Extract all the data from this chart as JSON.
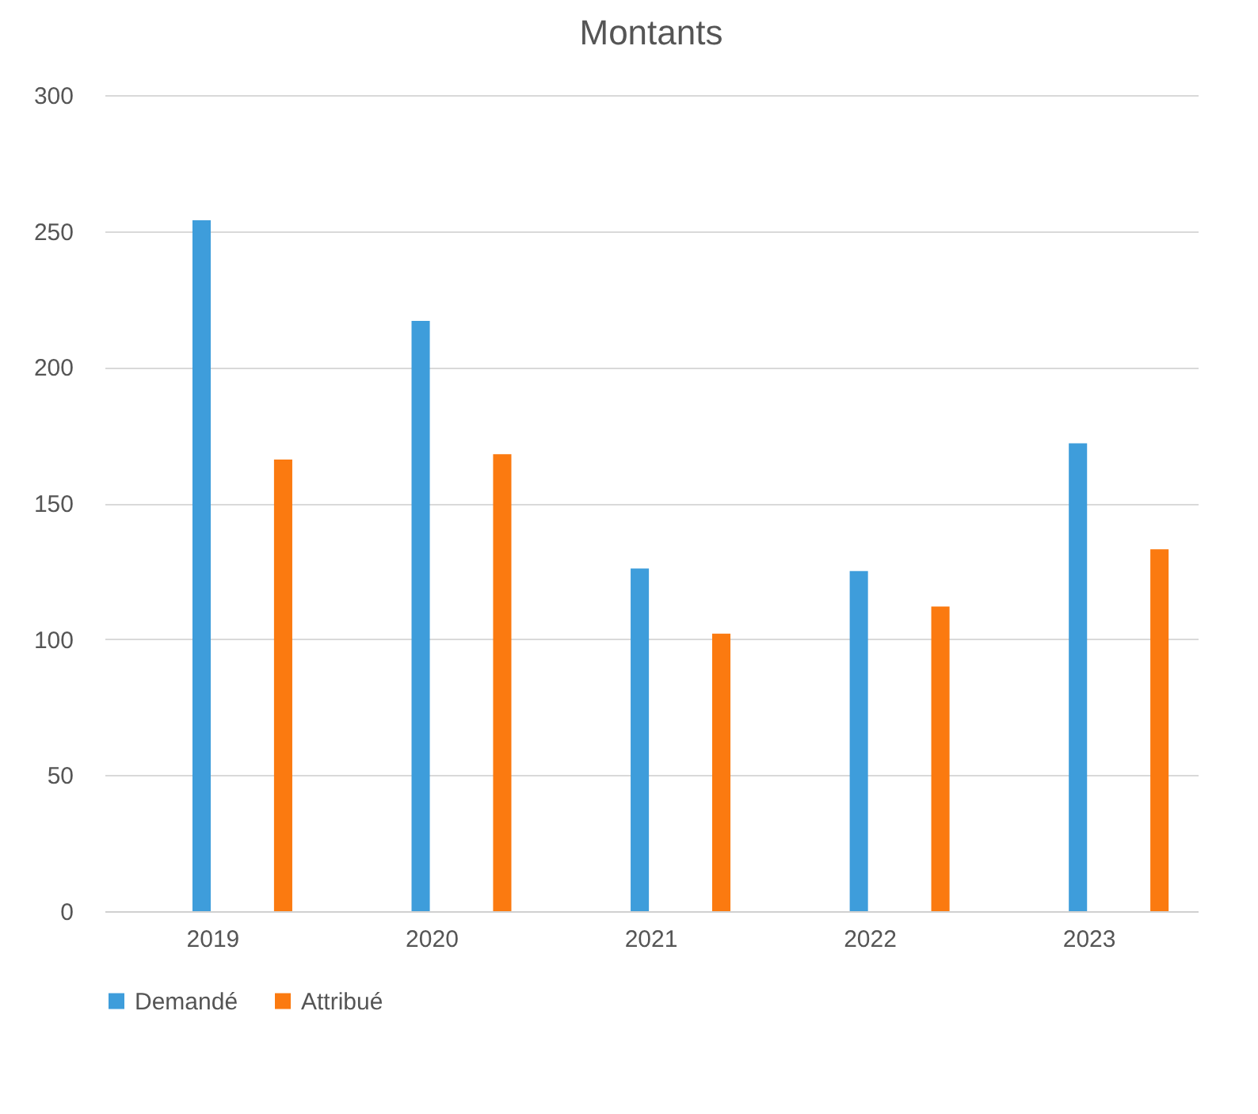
{
  "chart_data": {
    "type": "bar",
    "title": "Montants",
    "categories": [
      "2019",
      "2020",
      "2021",
      "2022",
      "2023"
    ],
    "series": [
      {
        "name": "Demandé",
        "color": "#3e9ddb",
        "values": [
          254,
          217,
          126,
          125,
          172
        ]
      },
      {
        "name": "Attribué",
        "color": "#fb7a10",
        "values": [
          166,
          168,
          102,
          112,
          133
        ]
      }
    ],
    "ylim": [
      0,
      300
    ],
    "yticks": [
      0,
      50,
      100,
      150,
      200,
      250,
      300
    ],
    "grid": "y",
    "legend": "bottom"
  }
}
